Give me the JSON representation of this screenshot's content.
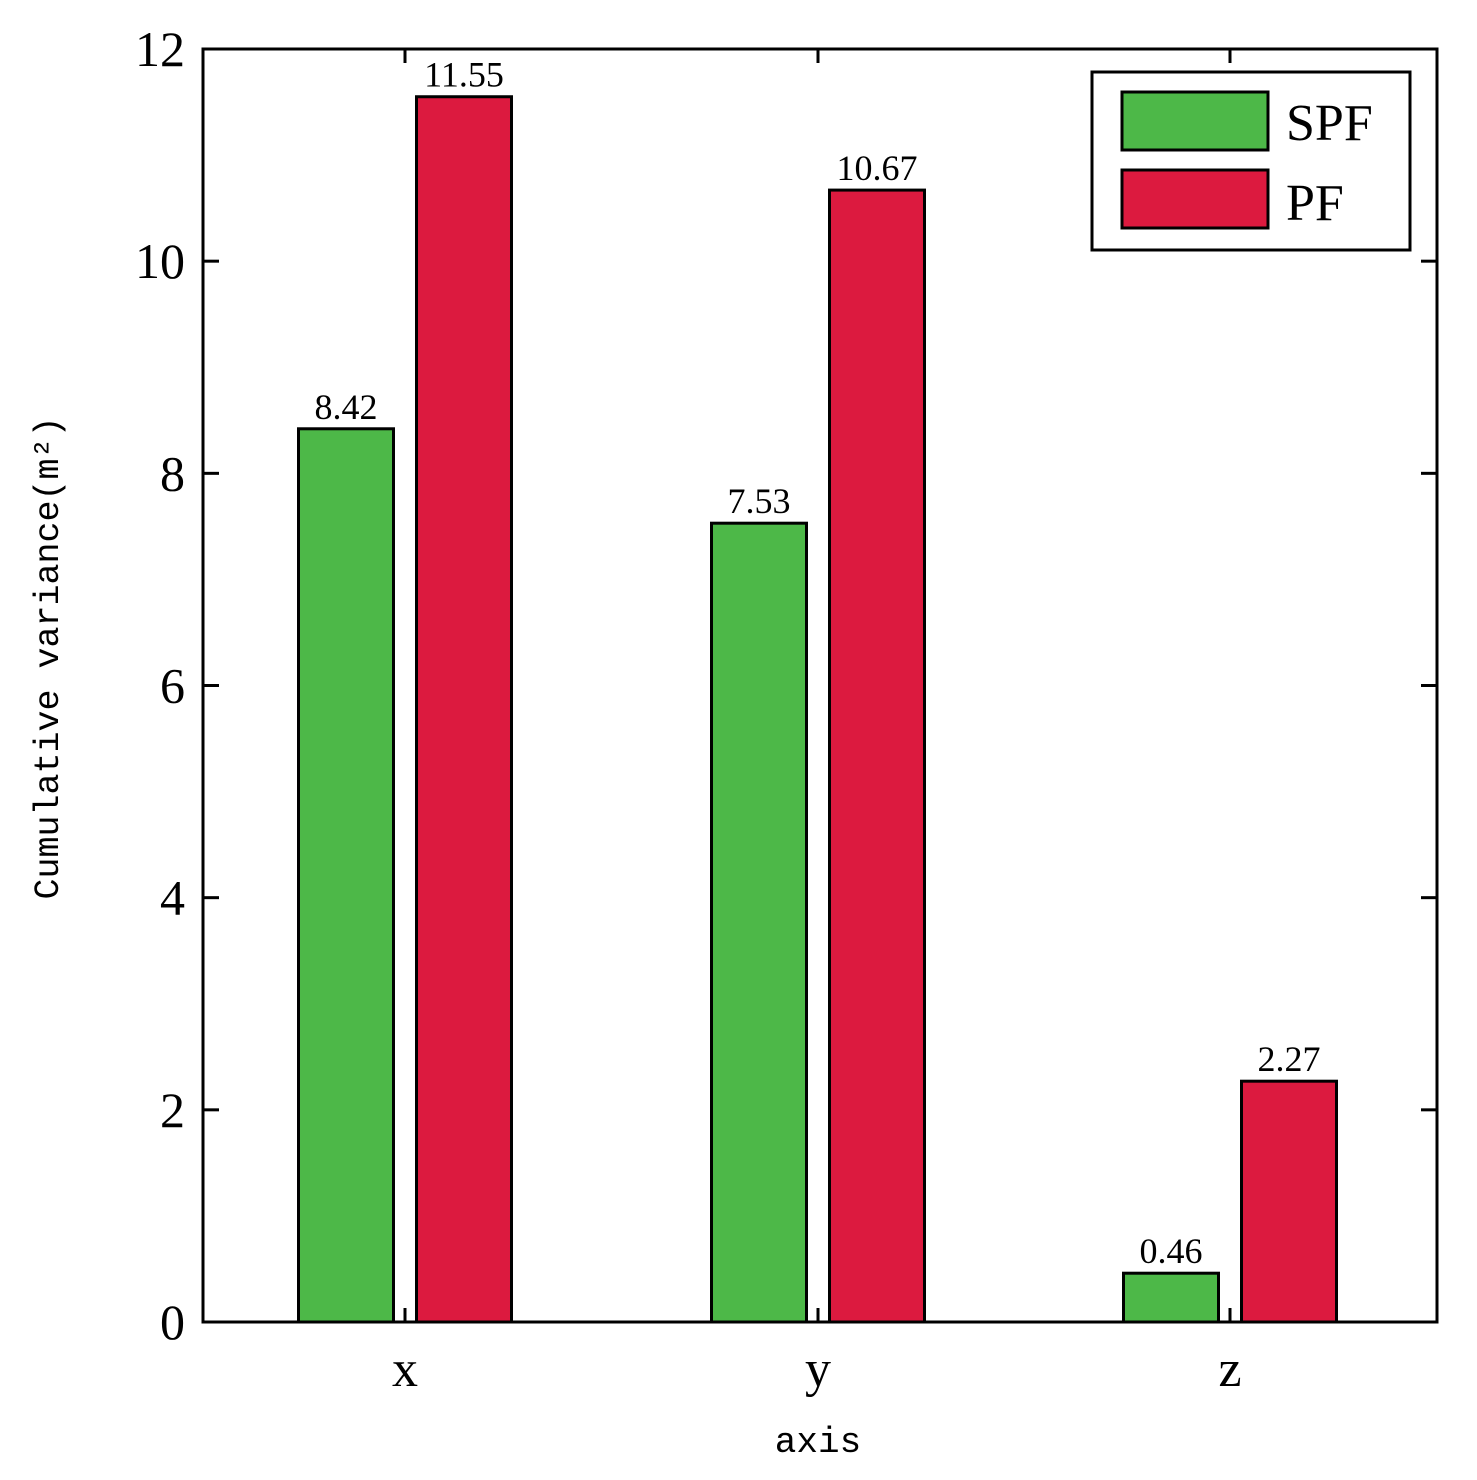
{
  "chart_data": {
    "type": "bar",
    "categories": [
      "x",
      "y",
      "z"
    ],
    "series": [
      {
        "name": "SPF",
        "values": [
          8.42,
          7.53,
          0.46
        ],
        "labels": [
          "8.42",
          "7.53",
          "0.46"
        ],
        "color": "#4db848"
      },
      {
        "name": "PF",
        "values": [
          11.55,
          10.67,
          2.27
        ],
        "labels": [
          "11.55",
          "10.67",
          "2.27"
        ],
        "color": "#dc1a3f"
      }
    ],
    "title": "",
    "xlabel": "axis",
    "ylabel": "Cumulative variance(m²)",
    "ylim": [
      0,
      12
    ],
    "yticks": [
      0,
      2,
      4,
      6,
      8,
      10,
      12
    ],
    "ytick_labels": [
      "0",
      "2",
      "4",
      "6",
      "8",
      "10",
      "12"
    ],
    "legend_position": "top-right",
    "grid": false
  }
}
